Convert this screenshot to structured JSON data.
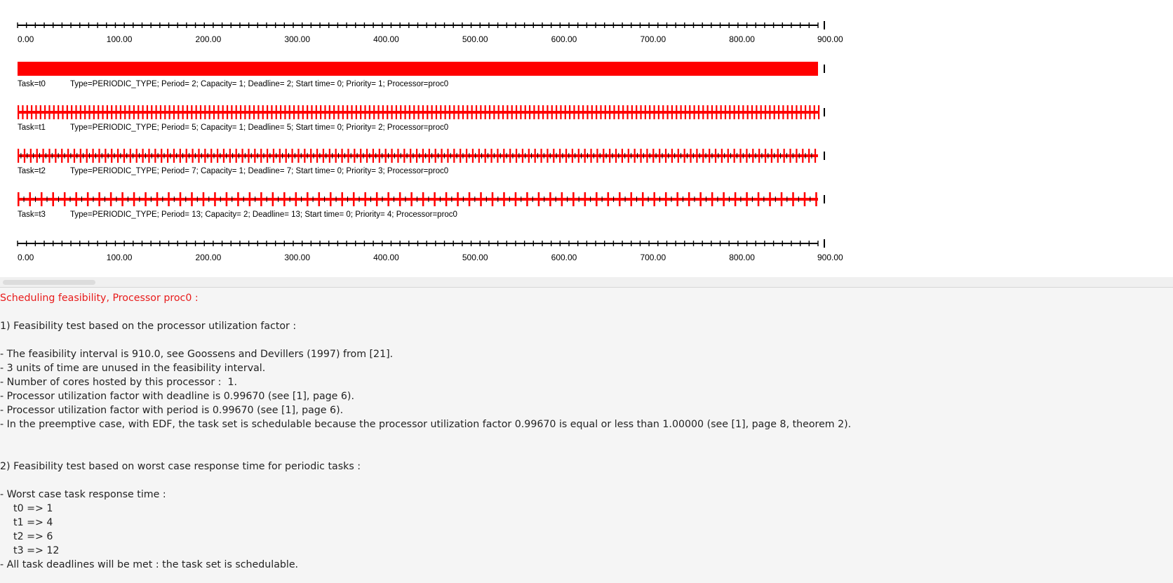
{
  "scheduling_chart": {
    "top_axis_labels": [
      "0.00",
      "100.00",
      "200.00",
      "300.00",
      "400.00",
      "500.00",
      "600.00",
      "700.00",
      "800.00",
      "900.00"
    ],
    "bottom_axis_labels": [
      "0.00",
      "100.00",
      "200.00",
      "300.00",
      "400.00",
      "500.00",
      "600.00",
      "700.00",
      "800.00",
      "900.00"
    ],
    "time_range": [
      0,
      900
    ],
    "bar_color": "#ff0000",
    "tasks": [
      {
        "label": "Task=t0",
        "info": "Type=PERIODIC_TYPE; Period= 2; Capacity= 1; Deadline= 2; Start time= 0; Priority= 1; Processor=proc0",
        "period": 2,
        "capacity": 1
      },
      {
        "label": "Task=t1",
        "info": "Type=PERIODIC_TYPE; Period= 5; Capacity= 1; Deadline= 5; Start time= 0; Priority= 2; Processor=proc0",
        "period": 5,
        "capacity": 1
      },
      {
        "label": "Task=t2",
        "info": "Type=PERIODIC_TYPE; Period= 7; Capacity= 1; Deadline= 7; Start time= 0; Priority= 3; Processor=proc0",
        "period": 7,
        "capacity": 1
      },
      {
        "label": "Task=t3",
        "info": "Type=PERIODIC_TYPE; Period= 13; Capacity= 2; Deadline= 13; Start time= 0; Priority= 4; Processor=proc0",
        "period": 13,
        "capacity": 2
      }
    ]
  },
  "report": {
    "heading": "Scheduling feasibility, Processor proc0 :",
    "section1_title": "1) Feasibility test based on the processor utilization factor :",
    "section1_lines": [
      "- The feasibility interval is 910.0, see Goossens and Devillers (1997) from [21].",
      "- 3 units of time are unused in the feasibility interval.",
      "- Number of cores hosted by this processor :  1.",
      "- Processor utilization factor with deadline is 0.99670 (see [1], page 6).",
      "- Processor utilization factor with period is 0.99670 (see [1], page 6).",
      "- In the preemptive case, with EDF, the task set is schedulable because the processor utilization factor 0.99670 is equal or less than 1.00000 (see [1], page 8, theorem 2)."
    ],
    "section2_title": "2) Feasibility test based on worst case response time for periodic tasks :",
    "section2_intro": "- Worst case task response time :",
    "response_times": [
      "t0 => 1",
      "t1 => 4",
      "t2 => 6",
      "t3 => 12"
    ],
    "conclusion": "- All task deadlines will be met : the task set is schedulable."
  }
}
